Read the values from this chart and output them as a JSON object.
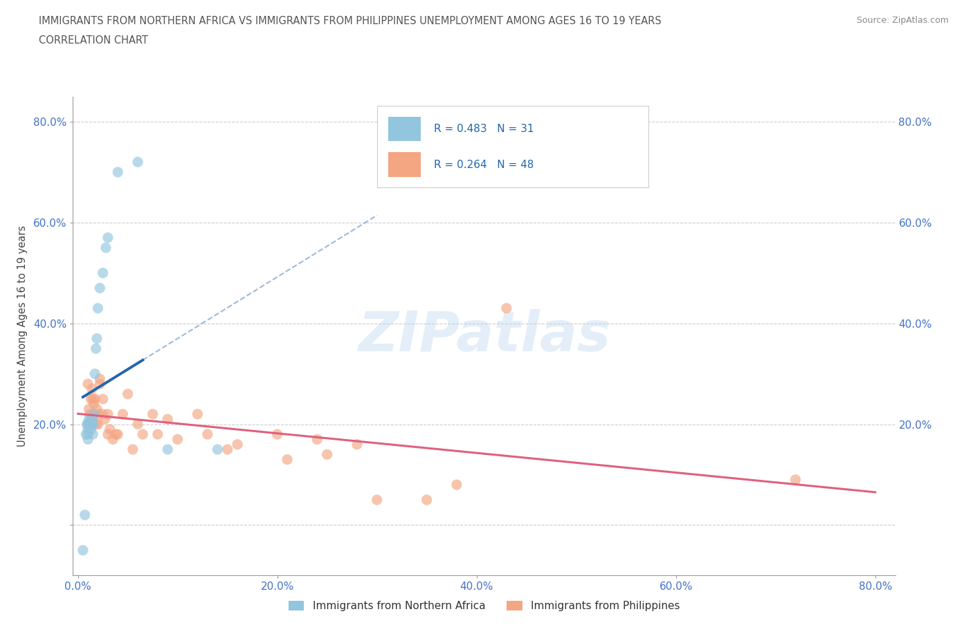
{
  "title_line1": "IMMIGRANTS FROM NORTHERN AFRICA VS IMMIGRANTS FROM PHILIPPINES UNEMPLOYMENT AMONG AGES 16 TO 19 YEARS",
  "title_line2": "CORRELATION CHART",
  "source_text": "Source: ZipAtlas.com",
  "ylabel": "Unemployment Among Ages 16 to 19 years",
  "xlim": [
    -0.005,
    0.82
  ],
  "ylim": [
    -0.1,
    0.85
  ],
  "xticks": [
    0.0,
    0.2,
    0.4,
    0.6,
    0.8
  ],
  "yticks": [
    0.0,
    0.2,
    0.4,
    0.6,
    0.8
  ],
  "xticklabels": [
    "0.0%",
    "20.0%",
    "40.0%",
    "60.0%",
    "80.0%"
  ],
  "left_yticklabels": [
    "",
    "20.0%",
    "40.0%",
    "60.0%",
    "80.0%"
  ],
  "right_yticklabels": [
    "20.0%",
    "40.0%",
    "60.0%",
    "80.0%"
  ],
  "right_yticks": [
    0.2,
    0.4,
    0.6,
    0.8
  ],
  "color_africa": "#92c5de",
  "color_africa_line": "#2166ac",
  "color_philippines": "#f4a582",
  "color_philippines_line": "#e0607e",
  "legend_africa_R": "0.483",
  "legend_africa_N": "31",
  "legend_philippines_R": "0.264",
  "legend_philippines_N": "48",
  "watermark": "ZIPatlas",
  "africa_x": [
    0.005,
    0.007,
    0.008,
    0.009,
    0.01,
    0.01,
    0.01,
    0.01,
    0.011,
    0.012,
    0.012,
    0.013,
    0.013,
    0.013,
    0.014,
    0.015,
    0.015,
    0.015,
    0.016,
    0.017,
    0.018,
    0.019,
    0.02,
    0.022,
    0.025,
    0.028,
    0.03,
    0.04,
    0.06,
    0.09,
    0.14
  ],
  "africa_y": [
    -0.05,
    0.02,
    0.18,
    0.2,
    0.17,
    0.18,
    0.19,
    0.2,
    0.21,
    0.2,
    0.2,
    0.2,
    0.21,
    0.19,
    0.2,
    0.2,
    0.21,
    0.18,
    0.22,
    0.3,
    0.35,
    0.37,
    0.43,
    0.47,
    0.5,
    0.55,
    0.57,
    0.7,
    0.72,
    0.15,
    0.15
  ],
  "philippines_x": [
    0.01,
    0.01,
    0.011,
    0.012,
    0.013,
    0.014,
    0.015,
    0.016,
    0.016,
    0.017,
    0.018,
    0.019,
    0.02,
    0.021,
    0.022,
    0.022,
    0.025,
    0.025,
    0.027,
    0.03,
    0.03,
    0.032,
    0.035,
    0.038,
    0.04,
    0.045,
    0.05,
    0.055,
    0.06,
    0.065,
    0.075,
    0.08,
    0.09,
    0.1,
    0.12,
    0.13,
    0.15,
    0.16,
    0.2,
    0.21,
    0.24,
    0.25,
    0.28,
    0.3,
    0.35,
    0.38,
    0.43,
    0.72
  ],
  "philippines_y": [
    0.2,
    0.28,
    0.23,
    0.22,
    0.25,
    0.27,
    0.25,
    0.22,
    0.24,
    0.25,
    0.2,
    0.23,
    0.2,
    0.22,
    0.28,
    0.29,
    0.22,
    0.25,
    0.21,
    0.22,
    0.18,
    0.19,
    0.17,
    0.18,
    0.18,
    0.22,
    0.26,
    0.15,
    0.2,
    0.18,
    0.22,
    0.18,
    0.21,
    0.17,
    0.22,
    0.18,
    0.15,
    0.16,
    0.18,
    0.13,
    0.17,
    0.14,
    0.16,
    0.05,
    0.05,
    0.08,
    0.43,
    0.09
  ],
  "grid_color": "#cccccc",
  "background_color": "#ffffff",
  "title_color": "#555555",
  "axis_color": "#999999",
  "tick_color": "#4472c4",
  "bottom_legend_labels": [
    "Immigrants from Northern Africa",
    "Immigrants from Philippines"
  ]
}
